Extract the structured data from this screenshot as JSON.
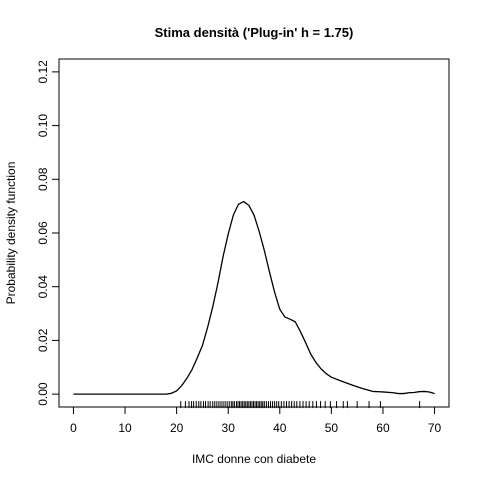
{
  "chart_data": {
    "type": "line",
    "title": "Stima densità ('Plug-in' h = 1.75)",
    "xlabel": "IMC donne con diabete",
    "ylabel": "Probability density function",
    "xlim": [
      -2.8,
      72.8
    ],
    "ylim": [
      -0.0048,
      0.1248
    ],
    "x_ticks": [
      0,
      10,
      20,
      30,
      40,
      50,
      60,
      70
    ],
    "y_ticks": [
      0.0,
      0.02,
      0.04,
      0.06,
      0.08,
      0.1,
      0.12
    ],
    "x_tick_labels": [
      "0",
      "10",
      "20",
      "30",
      "40",
      "50",
      "60",
      "70"
    ],
    "y_tick_labels": [
      "0.00",
      "0.02",
      "0.04",
      "0.06",
      "0.08",
      "0.10",
      "0.12"
    ],
    "grid": false,
    "legend": "none",
    "series": [
      {
        "x": [
          0,
          5,
          10,
          15,
          18,
          19,
          20,
          21,
          22,
          23,
          24,
          25,
          26,
          27,
          28,
          29,
          30,
          31,
          32,
          33,
          34,
          35,
          36,
          37,
          38,
          39,
          40,
          41,
          42,
          43,
          44,
          45,
          46,
          47,
          48,
          49,
          50,
          52,
          54,
          56,
          58,
          60,
          62,
          63,
          64,
          65,
          66,
          67,
          68,
          69,
          70
        ],
        "y": [
          0.0,
          0.0,
          0.0,
          0.0,
          0.0,
          0.0003,
          0.0012,
          0.0032,
          0.0059,
          0.0092,
          0.0135,
          0.0181,
          0.0248,
          0.0325,
          0.0413,
          0.0512,
          0.0596,
          0.0667,
          0.0707,
          0.0717,
          0.0703,
          0.0667,
          0.0606,
          0.0535,
          0.0455,
          0.0379,
          0.0316,
          0.0287,
          0.0279,
          0.0269,
          0.0233,
          0.0192,
          0.0149,
          0.0118,
          0.0094,
          0.0076,
          0.0063,
          0.0048,
          0.0034,
          0.0021,
          0.001,
          0.0008,
          0.0005,
          0.0002,
          0.0002,
          0.0005,
          0.0006,
          0.0009,
          0.001,
          0.0008,
          0.0002
        ]
      }
    ],
    "rug": [
      20.8,
      21.7,
      22.4,
      22.9,
      23.3,
      23.8,
      24.3,
      24.7,
      25.2,
      25.6,
      26.1,
      26.5,
      27.0,
      27.4,
      27.8,
      28.2,
      28.6,
      29.0,
      29.4,
      29.8,
      30.2,
      30.6,
      30.9,
      31.2,
      31.6,
      31.9,
      32.2,
      32.5,
      32.8,
      33.1,
      33.4,
      33.7,
      34.0,
      34.3,
      34.6,
      34.9,
      35.2,
      35.5,
      35.8,
      36.1,
      36.4,
      36.7,
      37.0,
      37.4,
      37.8,
      38.2,
      38.6,
      39.0,
      39.4,
      39.8,
      40.3,
      40.8,
      41.3,
      41.8,
      42.3,
      42.8,
      43.3,
      43.9,
      44.5,
      45.1,
      45.7,
      46.4,
      47.1,
      47.9,
      48.8,
      49.8,
      51.0,
      52.3,
      53.1,
      55.0,
      57.3,
      59.5,
      67.1
    ]
  }
}
